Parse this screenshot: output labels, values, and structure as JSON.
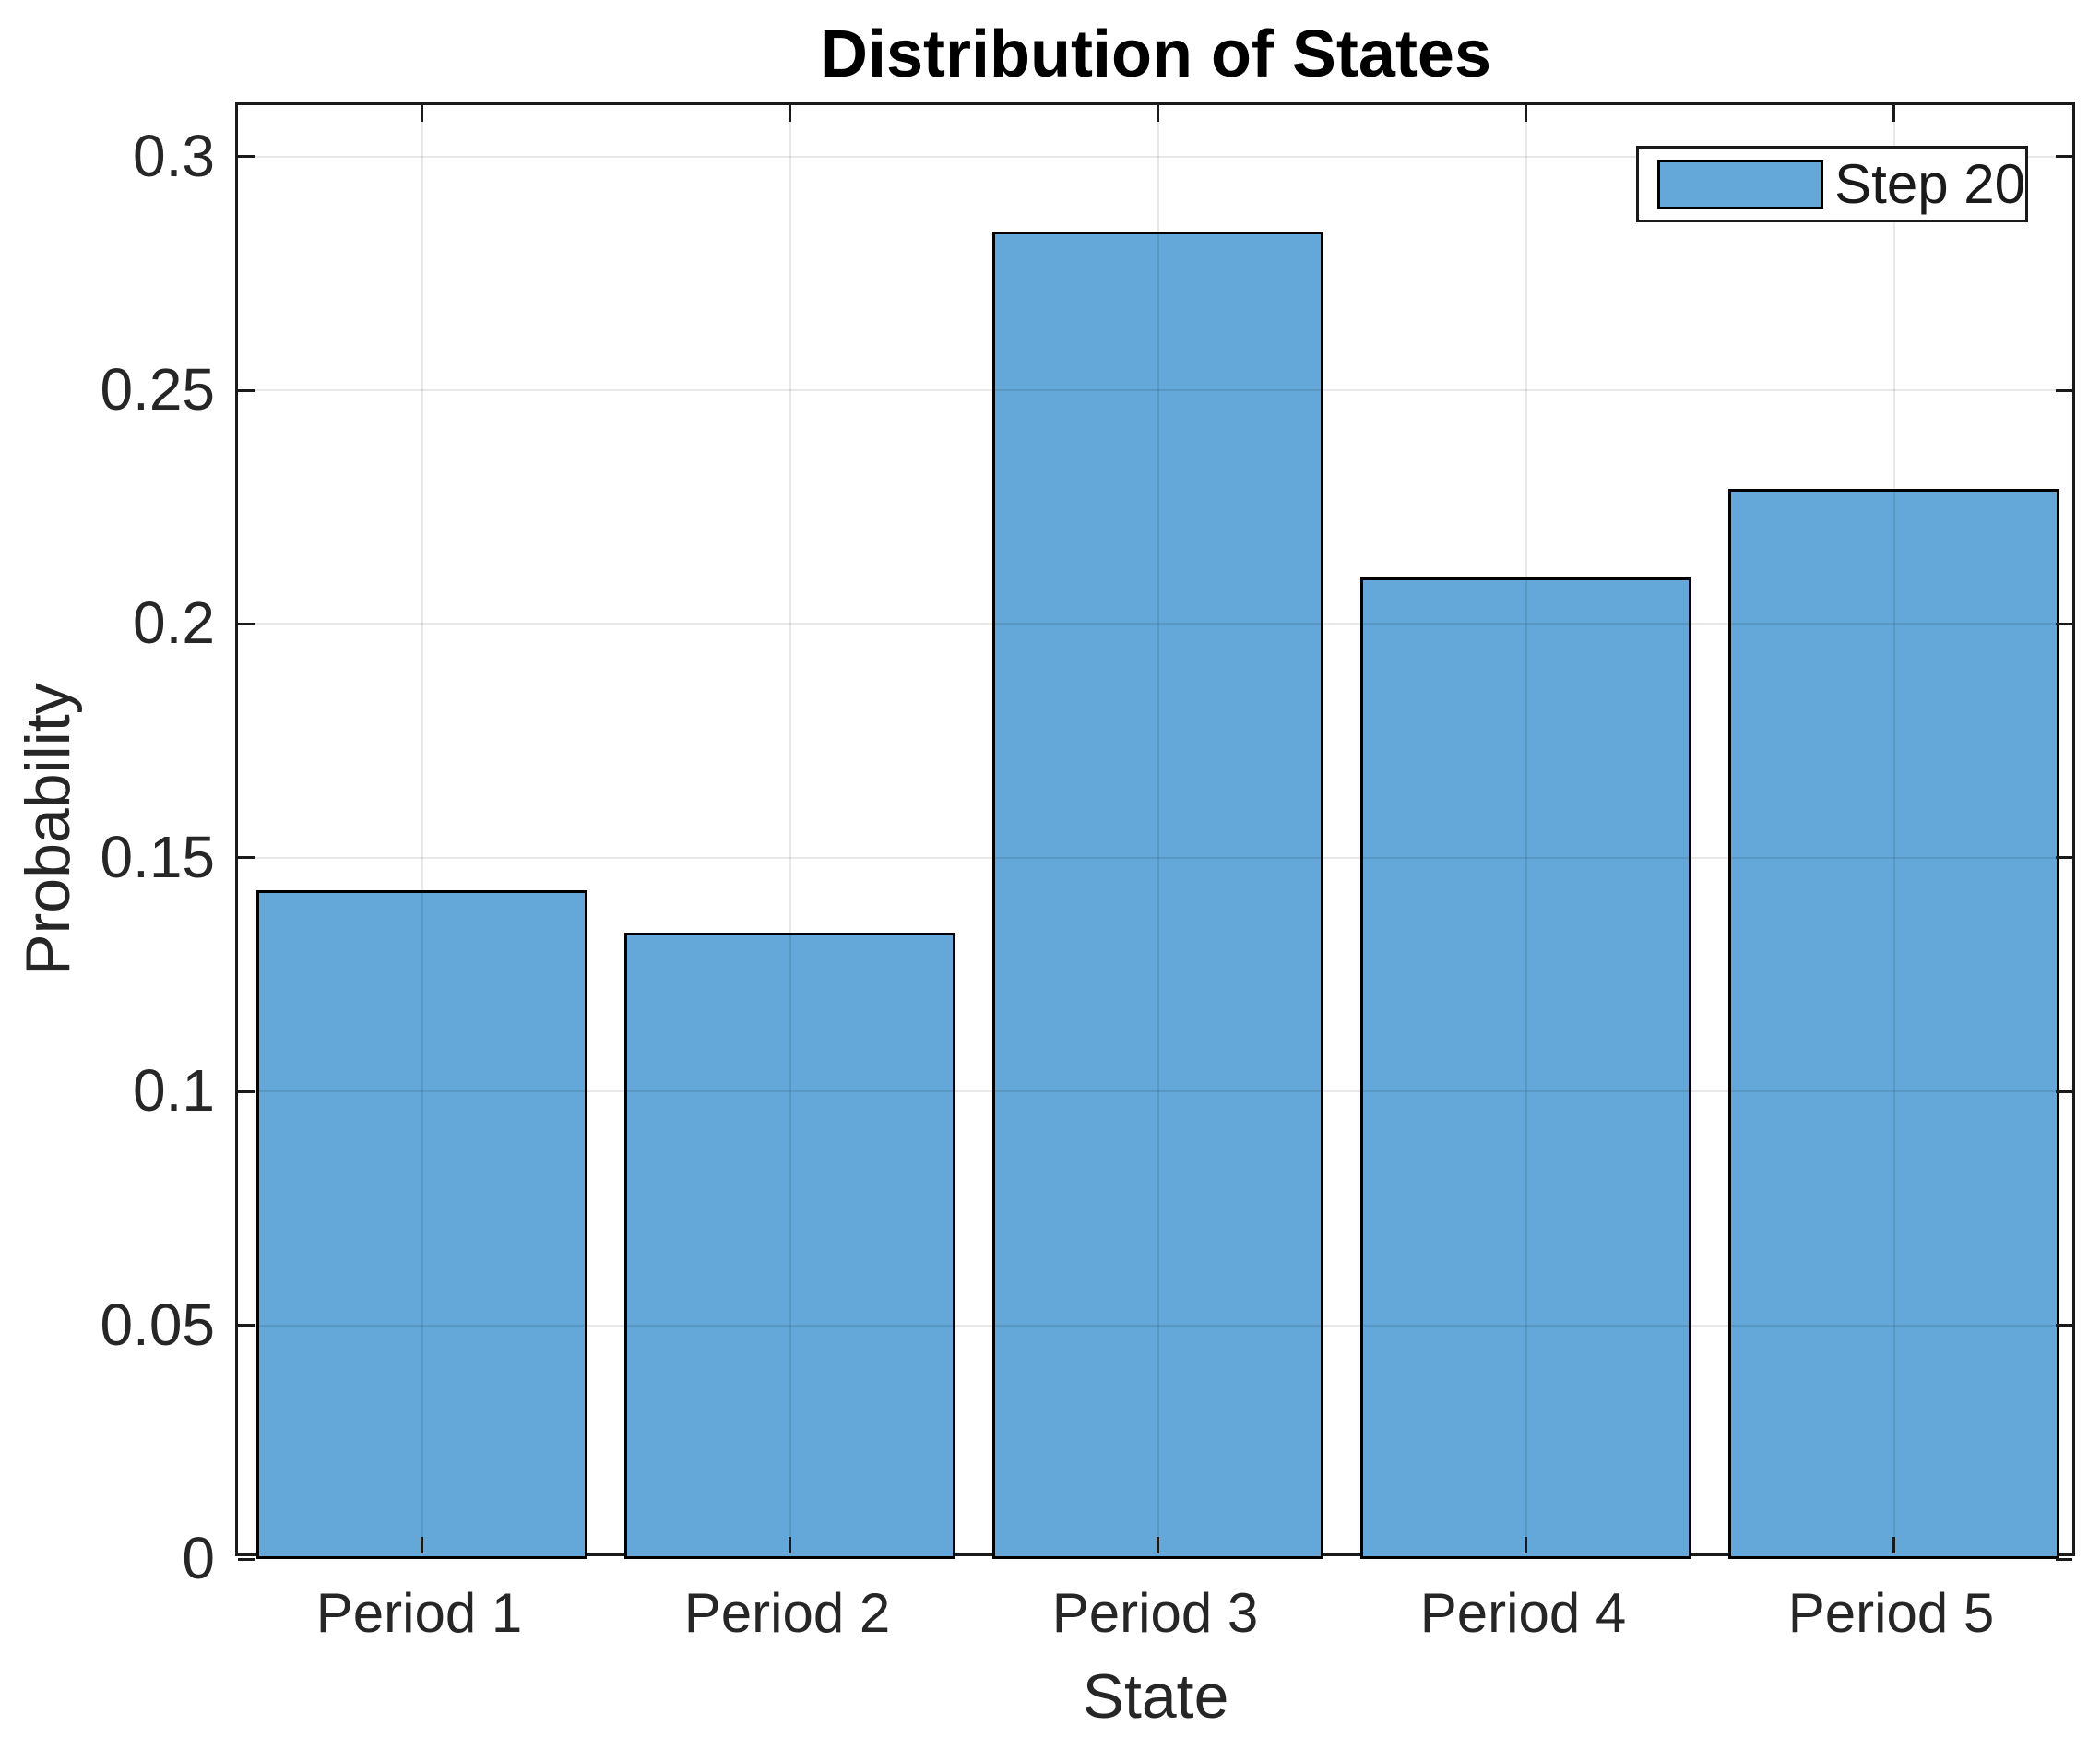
{
  "chart_data": {
    "type": "bar",
    "title": "Distribution of States",
    "xlabel": "State",
    "ylabel": "Probability",
    "categories": [
      "Period 1",
      "Period 2",
      "Period 3",
      "Period 4",
      "Period 5"
    ],
    "series": [
      {
        "name": "Step 20",
        "values": [
          0.143,
          0.134,
          0.284,
          0.21,
          0.229
        ]
      }
    ],
    "ylim": [
      0,
      0.311
    ],
    "yticks": [
      0,
      0.05,
      0.1,
      0.15,
      0.2,
      0.25,
      0.3
    ],
    "ytick_labels": [
      "0",
      "0.05",
      "0.1",
      "0.15",
      "0.2",
      "0.25",
      "0.3"
    ],
    "grid": true,
    "legend_position": "top-right",
    "bar_color": "#63a8d8",
    "bar_edge_color": "#000000",
    "axis_color": "#1a1a1a",
    "bar_width_fraction": 0.9
  }
}
